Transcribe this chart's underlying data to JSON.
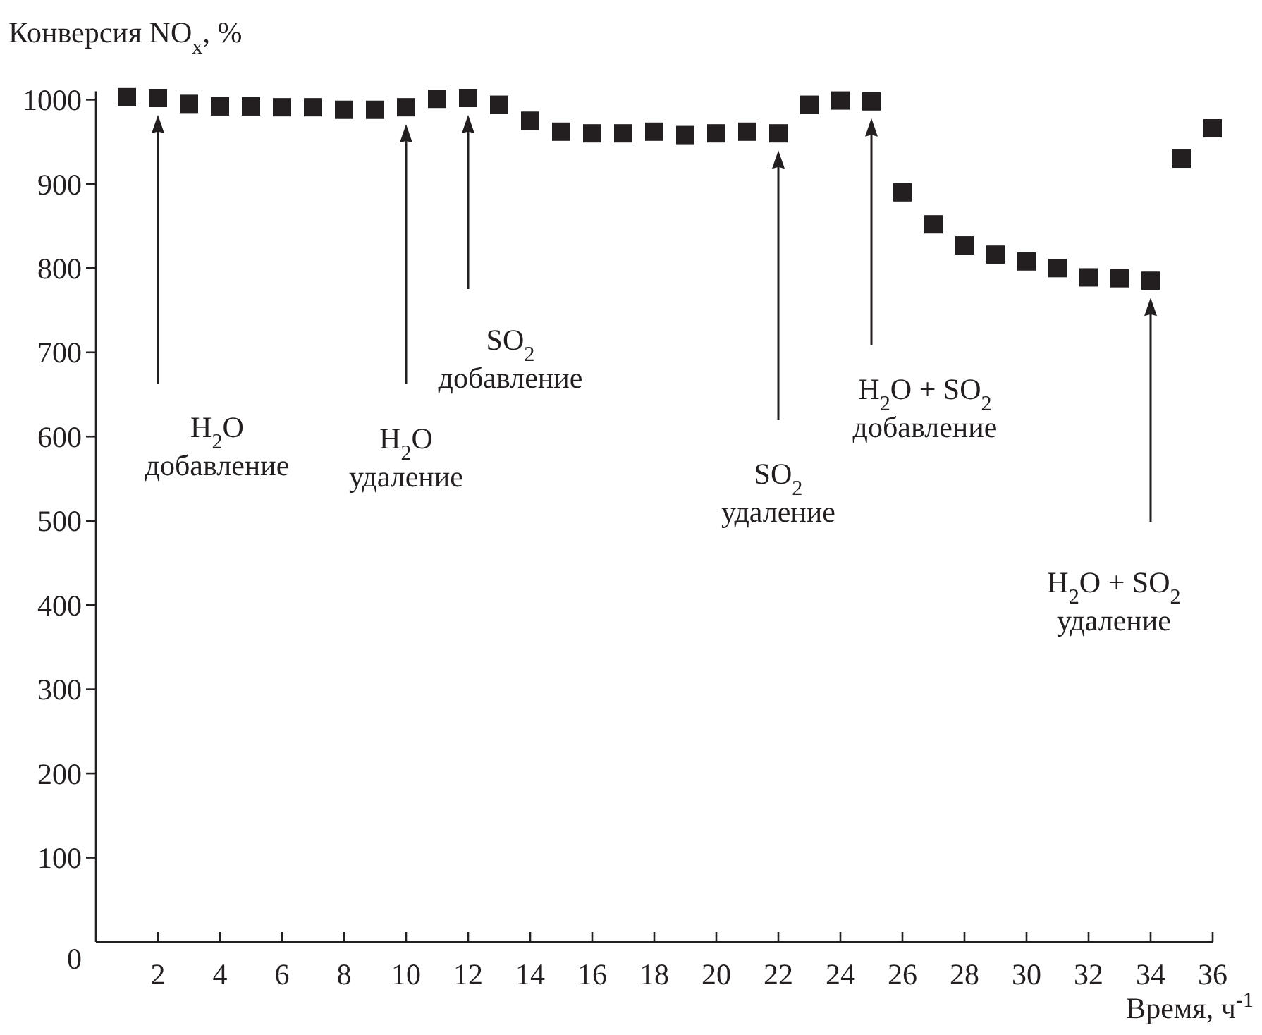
{
  "chart_data": {
    "type": "scatter",
    "marker": "square",
    "color": "#231f20",
    "ylabel": "Конверсия NO$_{x}$, %",
    "xlabel": "Время, ч$^{-1}$",
    "x": [
      1,
      2,
      3,
      4,
      5,
      6,
      7,
      8,
      9,
      10,
      11,
      12,
      13,
      14,
      15,
      16,
      17,
      18,
      19,
      20,
      21,
      22,
      23,
      24,
      25,
      26,
      27,
      28,
      29,
      30,
      31,
      32,
      33,
      34,
      35,
      36
    ],
    "values": [
      1003,
      1002,
      995,
      992,
      992,
      991,
      991,
      988,
      988,
      991,
      1001,
      1002,
      994,
      975,
      962,
      960,
      960,
      962,
      958,
      960,
      962,
      960,
      994,
      999,
      998,
      890,
      852,
      827,
      816,
      808,
      800,
      789,
      788,
      785,
      930,
      966
    ],
    "xlim": [
      0,
      36
    ],
    "xticks": [
      2,
      4,
      6,
      8,
      10,
      12,
      14,
      16,
      18,
      20,
      22,
      24,
      26,
      28,
      30,
      32,
      34,
      36
    ],
    "ylim": [
      0,
      1010
    ],
    "yticks": [
      0,
      100,
      200,
      300,
      400,
      500,
      600,
      700,
      800,
      900,
      1000
    ],
    "annotations": [
      "H$_{2}$O\nдобавление",
      "H$_{2}$O\nудаление",
      "SO$_{2}$\nдобавление",
      "SO$_{2}$\nудаление",
      "H$_{2}$O + SO$_{2}$\nдобавление",
      "H$_{2}$O + SO$_{2}$\nудаление"
    ]
  }
}
